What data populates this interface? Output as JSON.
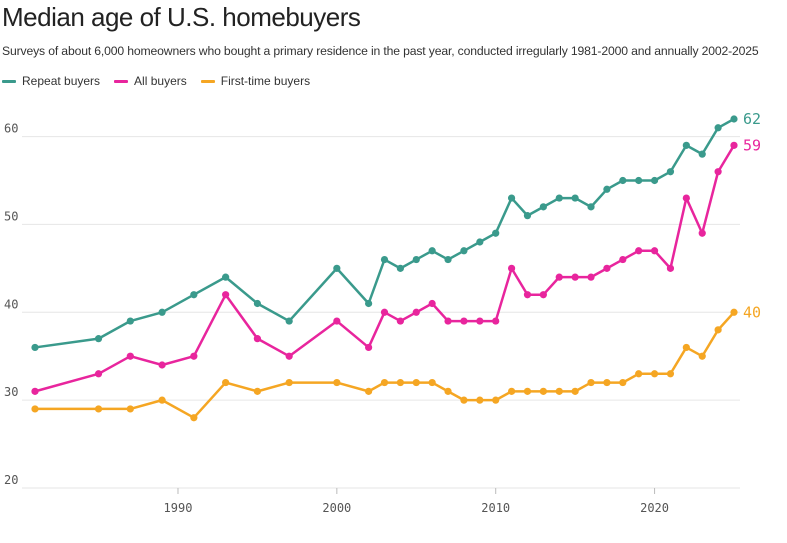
{
  "chart_data": {
    "type": "line",
    "title": "Median age of U.S. homebuyers",
    "subtitle": "Surveys of about 6,000 homeowners who bought a primary residence in the past year, conducted irregularly 1981-2000 and annually 2002-2025",
    "xlabel": "",
    "ylabel": "",
    "xlim": [
      1981,
      2025
    ],
    "ylim": [
      20,
      62
    ],
    "xticks": [
      1990,
      2000,
      2010,
      2020
    ],
    "yticks": [
      20,
      30,
      40,
      50,
      60
    ],
    "legend_position": "top-left",
    "series": [
      {
        "name": "Repeat buyers",
        "color": "#3a9a8c",
        "end_label": "62",
        "x": [
          1981,
          1985,
          1987,
          1989,
          1991,
          1993,
          1995,
          1997,
          2000,
          2002,
          2003,
          2004,
          2005,
          2006,
          2007,
          2008,
          2009,
          2010,
          2011,
          2012,
          2013,
          2014,
          2015,
          2016,
          2017,
          2018,
          2019,
          2020,
          2021,
          2022,
          2023,
          2024,
          2025
        ],
        "values": [
          36,
          37,
          39,
          40,
          42,
          44,
          41,
          39,
          45,
          41,
          46,
          45,
          46,
          47,
          46,
          47,
          48,
          49,
          53,
          51,
          52,
          53,
          53,
          52,
          54,
          55,
          55,
          55,
          56,
          59,
          58,
          61,
          62
        ]
      },
      {
        "name": "All buyers",
        "color": "#e8259d",
        "end_label": "59",
        "x": [
          1981,
          1985,
          1987,
          1989,
          1991,
          1993,
          1995,
          1997,
          2000,
          2002,
          2003,
          2004,
          2005,
          2006,
          2007,
          2008,
          2009,
          2010,
          2011,
          2012,
          2013,
          2014,
          2015,
          2016,
          2017,
          2018,
          2019,
          2020,
          2021,
          2022,
          2023,
          2024,
          2025
        ],
        "values": [
          31,
          33,
          35,
          34,
          35,
          42,
          37,
          35,
          39,
          36,
          40,
          39,
          40,
          41,
          39,
          39,
          39,
          39,
          45,
          42,
          42,
          44,
          44,
          44,
          45,
          46,
          47,
          47,
          45,
          53,
          49,
          56,
          59
        ]
      },
      {
        "name": "First-time buyers",
        "color": "#f5a623",
        "end_label": "40",
        "x": [
          1981,
          1985,
          1987,
          1989,
          1991,
          1993,
          1995,
          1997,
          2000,
          2002,
          2003,
          2004,
          2005,
          2006,
          2007,
          2008,
          2009,
          2010,
          2011,
          2012,
          2013,
          2014,
          2015,
          2016,
          2017,
          2018,
          2019,
          2020,
          2021,
          2022,
          2023,
          2024,
          2025
        ],
        "values": [
          29,
          29,
          29,
          30,
          28,
          32,
          31,
          32,
          32,
          31,
          32,
          32,
          32,
          32,
          31,
          30,
          30,
          30,
          31,
          31,
          31,
          31,
          31,
          32,
          32,
          32,
          33,
          33,
          33,
          36,
          35,
          38,
          40
        ]
      }
    ]
  }
}
